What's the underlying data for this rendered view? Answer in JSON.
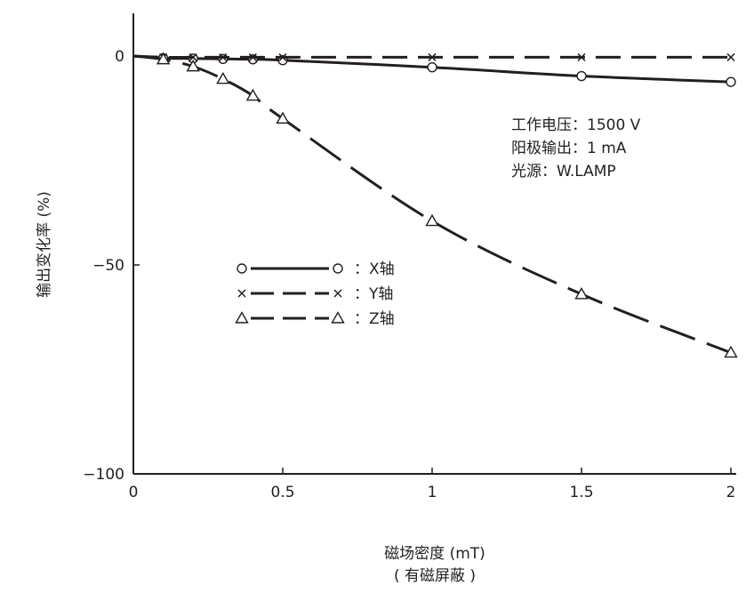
{
  "chart_data": {
    "type": "line",
    "xlabel": "磁场密度 (mT)",
    "xlabel_sub": "( 有磁屏蔽 )",
    "ylabel": "输出变化率 (%)",
    "xlim": [
      0,
      2
    ],
    "ylim": [
      -100,
      10
    ],
    "x_ticks": [
      0,
      0.5,
      1,
      1.5,
      2
    ],
    "x_tick_labels": [
      "0",
      "0.5",
      "1",
      "1.5",
      "2"
    ],
    "y_ticks": [
      0,
      -50,
      -100
    ],
    "y_tick_labels": [
      "0",
      "−50",
      "−100"
    ],
    "grid": false,
    "legend_position": "center-left",
    "notes": [
      "工作电压：1500 V",
      "阳极输出：1 mA",
      "光源：W.LAMP"
    ],
    "series": [
      {
        "name": "X轴",
        "legend_label": "：X轴",
        "marker": "circle",
        "dash": "solid",
        "color": "#231f20",
        "x": [
          0,
          0.1,
          0.2,
          0.3,
          0.4,
          0.5,
          1,
          1.5,
          2
        ],
        "y": [
          0,
          -0.5,
          -0.6,
          -0.7,
          -0.8,
          -1.0,
          -2.7,
          -4.8,
          -6.2
        ]
      },
      {
        "name": "Y轴",
        "legend_label": "：Y轴",
        "marker": "cross",
        "dash": "dashed",
        "color": "#231f20",
        "x": [
          0,
          0.1,
          0.2,
          0.3,
          0.4,
          0.5,
          1,
          1.5,
          2
        ],
        "y": [
          0,
          -0.3,
          -0.3,
          -0.3,
          -0.3,
          -0.3,
          -0.3,
          -0.3,
          -0.3
        ]
      },
      {
        "name": "Z轴",
        "legend_label": "：Z轴",
        "marker": "triangle",
        "dash": "longdash",
        "color": "#231f20",
        "x": [
          0,
          0.1,
          0.2,
          0.3,
          0.4,
          0.5,
          1,
          1.5,
          2
        ],
        "y": [
          0,
          -0.8,
          -2.5,
          -5.5,
          -9.5,
          -15,
          -39.5,
          -57,
          -71
        ]
      }
    ]
  }
}
